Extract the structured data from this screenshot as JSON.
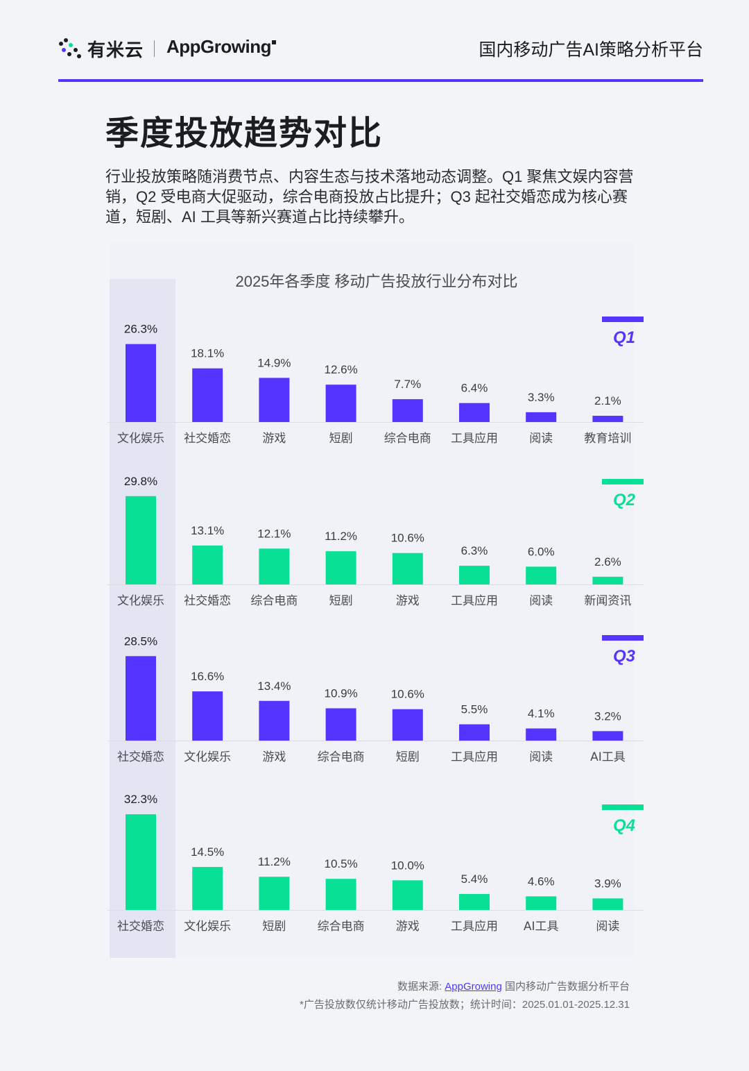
{
  "header": {
    "logo_cn": "有米云",
    "logo_en": "AppGrowing",
    "platform": "国内移动广告AI策略分析平台"
  },
  "page": {
    "title": "季度投放趋势对比",
    "description": "行业投放策略随消费节点、内容生态与技术落地动态调整。Q1 聚焦文娱内容营销，Q2 受电商大促驱动，综合电商投放占比提升；Q3 起社交婚恋成为核心赛道，短剧、AI 工具等新兴赛道占比持续攀升。"
  },
  "colors": {
    "accent": "#5534ff",
    "purple": "#5534ff",
    "green": "#07e095",
    "highlight_column": "#e3e6f2"
  },
  "chart_data": {
    "type": "bar",
    "title": "2025年各季度 移动广告投放行业分布对比",
    "value_unit": "%",
    "panels": [
      {
        "name": "Q1",
        "color": "#5534ff",
        "categories": [
          "文化娱乐",
          "社交婚恋",
          "游戏",
          "短剧",
          "综合电商",
          "工具应用",
          "阅读",
          "教育培训"
        ],
        "values": [
          26.3,
          18.1,
          14.9,
          12.6,
          7.7,
          6.4,
          3.3,
          2.1
        ]
      },
      {
        "name": "Q2",
        "color": "#07e095",
        "categories": [
          "文化娱乐",
          "社交婚恋",
          "综合电商",
          "短剧",
          "游戏",
          "工具应用",
          "阅读",
          "新闻资讯"
        ],
        "values": [
          29.8,
          13.1,
          12.1,
          11.2,
          10.6,
          6.3,
          6.0,
          2.6
        ]
      },
      {
        "name": "Q3",
        "color": "#5534ff",
        "categories": [
          "社交婚恋",
          "文化娱乐",
          "游戏",
          "综合电商",
          "短剧",
          "工具应用",
          "阅读",
          "AI工具"
        ],
        "values": [
          28.5,
          16.6,
          13.4,
          10.9,
          10.6,
          5.5,
          4.1,
          3.2
        ]
      },
      {
        "name": "Q4",
        "color": "#07e095",
        "categories": [
          "社交婚恋",
          "文化娱乐",
          "短剧",
          "综合电商",
          "游戏",
          "工具应用",
          "AI工具",
          "阅读"
        ],
        "values": [
          32.3,
          14.5,
          11.2,
          10.5,
          10.0,
          5.4,
          4.6,
          3.9
        ]
      }
    ]
  },
  "footer": {
    "source_prefix": "数据来源: ",
    "source_link": "AppGrowing",
    "source_suffix": " 国内移动广告数据分析平台",
    "note": "*广告投放数仅统计移动广告投放数；统计时间：2025.01.01-2025.12.31"
  }
}
